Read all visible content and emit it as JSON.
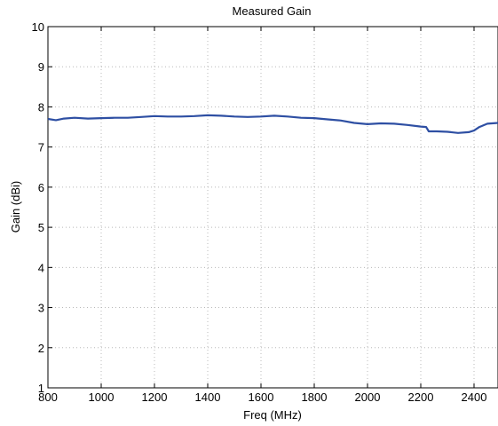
{
  "chart_data": {
    "type": "line",
    "title": "Measured Gain",
    "xlabel": "Freq (MHz)",
    "ylabel": "Gain (dBi)",
    "xlim": [
      800,
      2490
    ],
    "ylim": [
      1,
      10
    ],
    "xticks": [
      800,
      1000,
      1200,
      1400,
      1600,
      1800,
      2000,
      2200,
      2400
    ],
    "yticks": [
      1,
      2,
      3,
      4,
      5,
      6,
      7,
      8,
      9,
      10
    ],
    "grid": true,
    "series_color": "#2e4fa3",
    "series": [
      {
        "x": [
          800,
          830,
          860,
          900,
          950,
          1000,
          1050,
          1100,
          1150,
          1200,
          1250,
          1300,
          1350,
          1400,
          1450,
          1500,
          1550,
          1600,
          1650,
          1700,
          1750,
          1800,
          1850,
          1900,
          1950,
          2000,
          2050,
          2100,
          2150,
          2200,
          2220,
          2230,
          2260,
          2300,
          2340,
          2380,
          2400,
          2420,
          2450,
          2490
        ],
        "y": [
          7.7,
          7.67,
          7.71,
          7.73,
          7.71,
          7.72,
          7.73,
          7.73,
          7.75,
          7.77,
          7.76,
          7.76,
          7.77,
          7.79,
          7.78,
          7.76,
          7.75,
          7.76,
          7.78,
          7.76,
          7.73,
          7.72,
          7.69,
          7.66,
          7.6,
          7.57,
          7.59,
          7.58,
          7.55,
          7.51,
          7.5,
          7.39,
          7.39,
          7.38,
          7.35,
          7.37,
          7.41,
          7.5,
          7.58,
          7.6
        ]
      }
    ]
  }
}
